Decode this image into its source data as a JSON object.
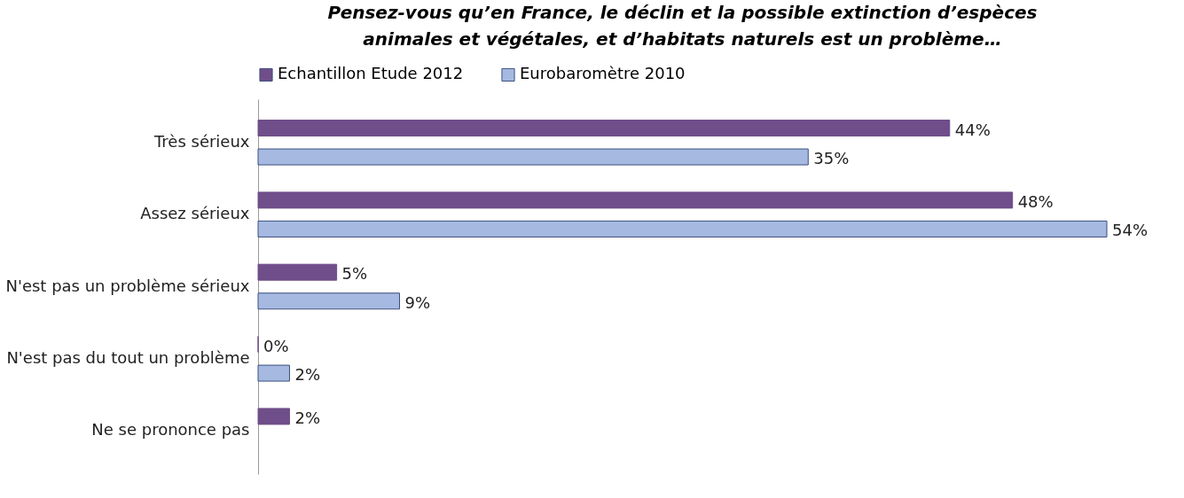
{
  "chart_data": {
    "type": "bar",
    "orientation": "horizontal",
    "title": "Pensez-vous qu’en France, le déclin et la possible extinction d’espèces animales et végétales, et d’habitats naturels est un problème…",
    "categories": [
      "Très sérieux",
      "Assez sérieux",
      "N'est pas un problème sérieux",
      "N'est pas du tout un problème",
      "Ne se prononce pas"
    ],
    "series": [
      {
        "name": "Echantillon Etude 2012",
        "color": "#6f4e8a",
        "values": [
          44,
          48,
          5,
          0,
          2
        ],
        "value_labels": [
          "44%",
          "48%",
          "5%",
          "0%",
          "2%"
        ]
      },
      {
        "name": "Eurobaromètre 2010",
        "color": "#a6b9e0",
        "values": [
          35,
          54,
          9,
          2,
          null
        ],
        "value_labels": [
          "35%",
          "54%",
          "9%",
          "2%",
          null
        ]
      }
    ],
    "legend": "top",
    "grid": false
  }
}
